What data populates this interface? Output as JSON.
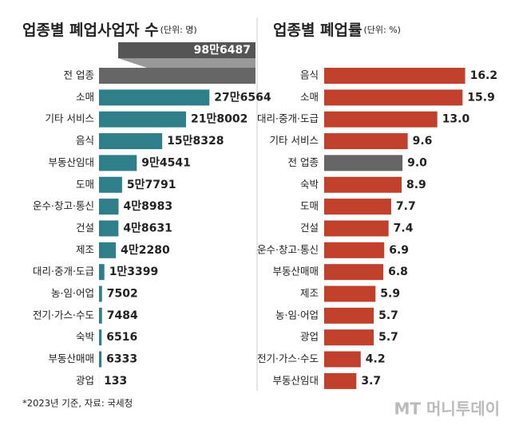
{
  "chart_data": [
    {
      "type": "hbar",
      "title": "업종별 폐업사업자 수",
      "subtitle": "(단위: 명)",
      "categories": [
        "전 업종",
        "소매",
        "기타 서비스",
        "음식",
        "부동산임대",
        "도매",
        "운수·창고·통신",
        "건설",
        "제조",
        "대리·중개·도급",
        "농·임·어업",
        "전기·가스·수도",
        "숙박",
        "부동산매매",
        "광업"
      ],
      "values": [
        986487,
        276564,
        218002,
        158328,
        94541,
        57791,
        48983,
        48631,
        42280,
        13399,
        7502,
        7484,
        6516,
        6333,
        133
      ],
      "value_labels": [
        "98만6487",
        "27만6564",
        "21만8002",
        "15만8328",
        "9만4541",
        "5만7791",
        "4만8983",
        "4만8631",
        "4만2280",
        "1만3399",
        "7502",
        "7484",
        "6516",
        "6333",
        "133"
      ],
      "colors": [
        "#666666",
        "#2f7f8a",
        "#2f7f8a",
        "#2f7f8a",
        "#2f7f8a",
        "#2f7f8a",
        "#2f7f8a",
        "#2f7f8a",
        "#2f7f8a",
        "#2f7f8a",
        "#2f7f8a",
        "#2f7f8a",
        "#2f7f8a",
        "#2f7f8a",
        "#2f7f8a"
      ]
    },
    {
      "type": "hbar",
      "title": "업종별 폐업률",
      "subtitle": "(단위: %)",
      "categories": [
        "음식",
        "소매",
        "대리·중개·도급",
        "기타 서비스",
        "전 업종",
        "숙박",
        "도매",
        "건설",
        "운수·창고·통신",
        "부동산매매",
        "제조",
        "농·임·어업",
        "광업",
        "전기·가스·수도",
        "부동산임대"
      ],
      "values": [
        16.2,
        15.9,
        13,
        9.6,
        9,
        8.9,
        7.7,
        7.4,
        6.9,
        6.8,
        5.9,
        5.7,
        5.7,
        4.2,
        3.7
      ],
      "value_labels": [
        "16.2",
        "15.9",
        "13.0",
        "9.6",
        "9.0",
        "8.9",
        "7.7",
        "7.4",
        "6.9",
        "6.8",
        "5.9",
        "5.7",
        "5.7",
        "4.2",
        "3.7"
      ],
      "colors": [
        "#c0402c",
        "#c0402c",
        "#c0402c",
        "#c0402c",
        "#666666",
        "#c0402c",
        "#c0402c",
        "#c0402c",
        "#c0402c",
        "#c0402c",
        "#c0402c",
        "#c0402c",
        "#c0402c",
        "#c0402c",
        "#c0402c"
      ]
    }
  ],
  "footnote": "*2023년 기준, 자료: 국세청",
  "brand": "MT 머니투데이"
}
